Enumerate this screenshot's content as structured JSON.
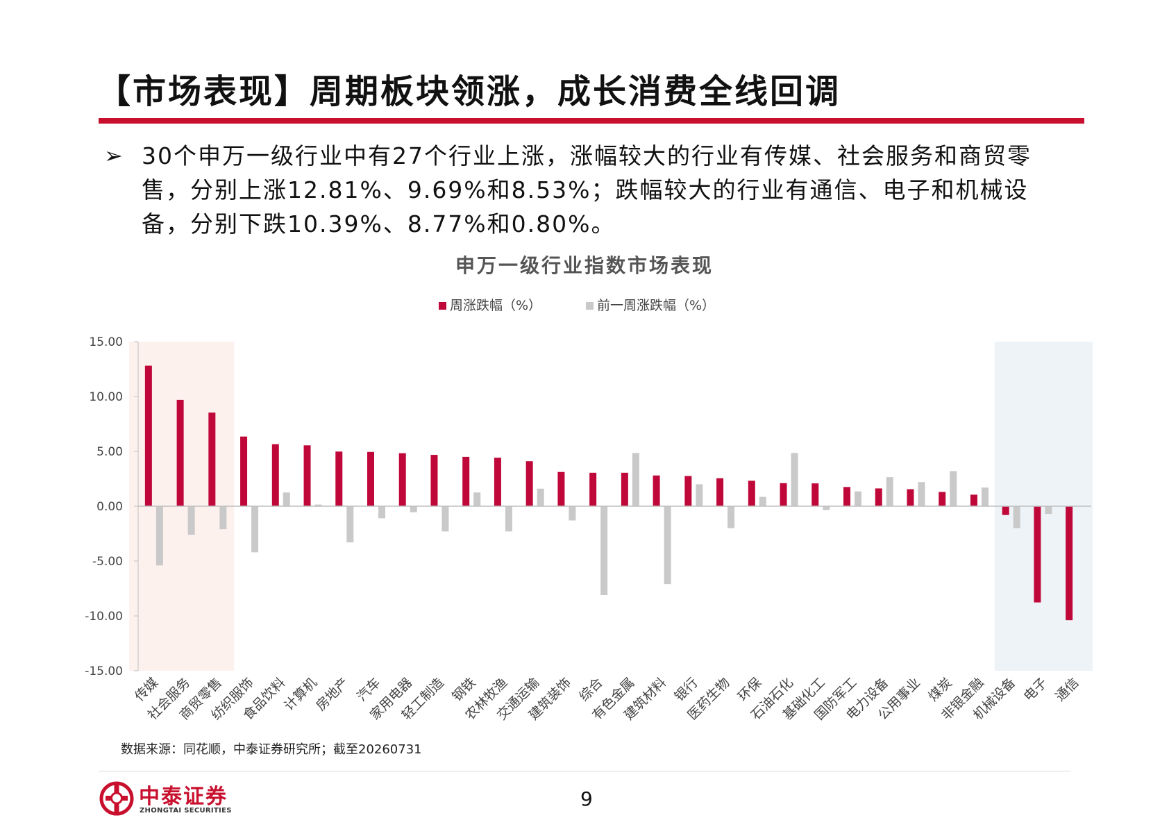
{
  "title": "【市场表现】周期板块领涨，成长消费全线回调",
  "bullet": {
    "marker": "➢",
    "text": "30个申万一级行业中有27个行业上涨，涨幅较大的行业有传媒、社会服务和商贸零售，分别上涨12.81%、9.69%和8.53%；跌幅较大的行业有通信、电子和机械设备，分别下跌10.39%、8.77%和0.80%。"
  },
  "chart_data": {
    "type": "bar",
    "title": "申万一级行业指数市场表现",
    "categories": [
      "传媒",
      "社会服务",
      "商贸零售",
      "纺织服饰",
      "食品饮料",
      "计算机",
      "房地产",
      "汽车",
      "家用电器",
      "轻工制造",
      "钢铁",
      "农林牧渔",
      "交通运输",
      "建筑装饰",
      "综合",
      "有色金属",
      "建筑材料",
      "银行",
      "医药生物",
      "环保",
      "石油石化",
      "基础化工",
      "国防军工",
      "电力设备",
      "公用事业",
      "煤炭",
      "非银金融",
      "机械设备",
      "电子",
      "通信"
    ],
    "series": [
      {
        "name": "周涨跌幅（%）",
        "color": "#c0073a",
        "values": [
          12.81,
          9.69,
          8.53,
          6.35,
          5.65,
          5.55,
          4.98,
          4.95,
          4.83,
          4.68,
          4.5,
          4.42,
          4.1,
          3.12,
          3.05,
          3.05,
          2.8,
          2.75,
          2.55,
          2.32,
          2.1,
          2.08,
          1.75,
          1.62,
          1.55,
          1.3,
          1.05,
          -0.8,
          -8.77,
          -10.39
        ]
      },
      {
        "name": "前一周涨跌幅（%）",
        "color": "#c9c9c9",
        "values": [
          -5.4,
          -2.6,
          -2.1,
          -4.2,
          1.25,
          0.15,
          -3.3,
          -1.1,
          -0.55,
          -2.3,
          1.25,
          -2.3,
          1.6,
          -1.3,
          -8.1,
          4.85,
          -7.1,
          2.0,
          -2.0,
          0.85,
          4.85,
          -0.35,
          1.35,
          2.65,
          2.2,
          3.2,
          1.7,
          -2.0,
          -0.7,
          0.0
        ]
      }
    ],
    "ylim": [
      -15,
      15
    ],
    "yticks": [
      "15.00",
      "10.00",
      "5.00",
      "0.00",
      "-5.00",
      "-10.00",
      "-15.00"
    ],
    "highlight_top": {
      "categories": 3,
      "color": "#fdf1ee"
    },
    "highlight_bottom": {
      "categories": 3,
      "color": "#eef3f7"
    },
    "legend_position": "top-center",
    "grid": false
  },
  "source": "数据来源：同花顺，中泰证券研究所；截至20260731",
  "logo": {
    "cn": "中泰证券",
    "en": "ZHONGTAI SECURITIES"
  },
  "page_number": "9"
}
